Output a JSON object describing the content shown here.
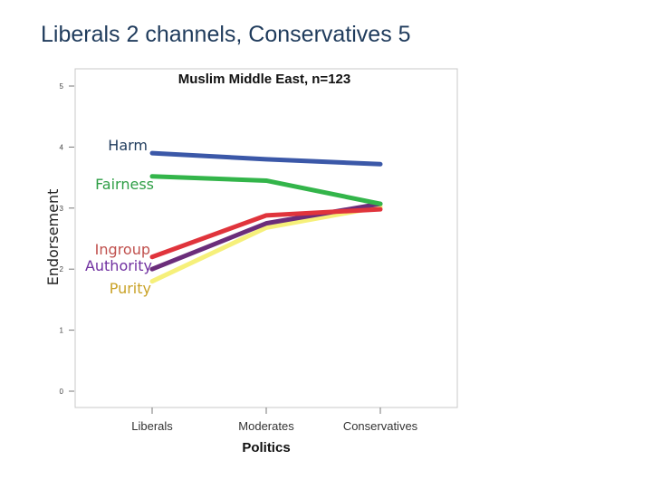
{
  "slide": {
    "title": "Liberals 2 channels, Conservatives 5"
  },
  "chart_data": {
    "type": "line",
    "title": "Muslim Middle East, n=123",
    "xlabel": "Politics",
    "ylabel": "Endorsement",
    "categories": [
      "Liberals",
      "Moderates",
      "Conservatives"
    ],
    "ylim": [
      0,
      5
    ],
    "yticks": [
      "0",
      "1",
      "2",
      "3",
      "4",
      "5"
    ],
    "grid": false,
    "series": [
      {
        "name": "Harm",
        "color": "#3b58a8",
        "values": [
          3.9,
          3.8,
          3.72
        ]
      },
      {
        "name": "Fairness",
        "color": "#33b54a",
        "values": [
          3.52,
          3.45,
          3.07
        ]
      },
      {
        "name": "Ingroup",
        "color": "#e0343c",
        "values": [
          2.2,
          2.88,
          2.98
        ]
      },
      {
        "name": "Authority",
        "color": "#6b2d7a",
        "values": [
          2.0,
          2.75,
          3.07
        ]
      },
      {
        "name": "Purity",
        "color": "#f6f07a",
        "values": [
          1.8,
          2.68,
          3.02
        ]
      }
    ],
    "annotations": [
      {
        "text": "Harm",
        "series": "Harm",
        "color": "#1f3b5c"
      },
      {
        "text": "Fairness",
        "series": "Fairness",
        "color": "#2e9e46"
      },
      {
        "text": "Ingroup",
        "series": "Ingroup",
        "color": "#c0504d"
      },
      {
        "text": "Authority",
        "series": "Authority",
        "color": "#7030a0"
      },
      {
        "text": "Purity",
        "series": "Purity",
        "color": "#c9a227"
      }
    ]
  }
}
